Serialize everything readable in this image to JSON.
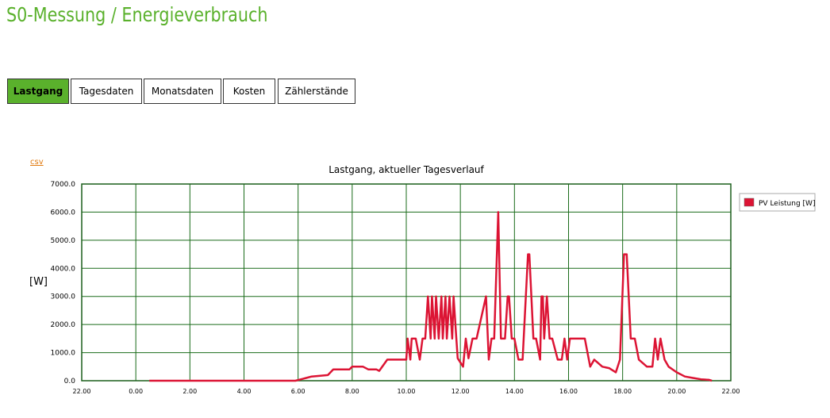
{
  "page": {
    "title": "S0-Messung / Energieverbrauch",
    "accent_color": "#5ab12c",
    "link_color": "#e07a10"
  },
  "tabs": [
    {
      "label": "Lastgang",
      "active": true
    },
    {
      "label": "Tagesdaten",
      "active": false
    },
    {
      "label": "Monatsdaten",
      "active": false
    },
    {
      "label": "Kosten",
      "active": false
    },
    {
      "label": "Zählerstände",
      "active": false
    }
  ],
  "csv_label": "csv",
  "chart_data": {
    "type": "line",
    "title": "Lastgang, aktueller Tagesverlauf",
    "ylabel": "[W]",
    "xlabel": "",
    "ylim": [
      0,
      7000
    ],
    "xlim": [
      -2,
      22
    ],
    "yticks": [
      "0.0",
      "1000.0",
      "2000.0",
      "3000.0",
      "4000.0",
      "5000.0",
      "6000.0",
      "7000.0"
    ],
    "xticks": [
      "22.00",
      "0.00",
      "2.00",
      "4.00",
      "6.00",
      "8.00",
      "10.00",
      "12.00",
      "14.00",
      "16.00",
      "18.00",
      "20.00",
      "22.00"
    ],
    "grid": true,
    "grid_color": "#1a6b1a",
    "legend_position": "right",
    "series": [
      {
        "name": "PV Leistung [W]",
        "color": "#dc1434",
        "x": [
          0.5,
          2,
          4,
          5.9,
          6.3,
          6.5,
          7.1,
          7.3,
          7.9,
          8.0,
          8.4,
          8.6,
          8.9,
          9.0,
          9.3,
          10.0,
          10.05,
          10.15,
          10.2,
          10.35,
          10.5,
          10.6,
          10.7,
          10.8,
          10.9,
          10.95,
          11.05,
          11.1,
          11.2,
          11.3,
          11.35,
          11.45,
          11.5,
          11.6,
          11.7,
          11.75,
          11.85,
          11.9,
          12.1,
          12.2,
          12.3,
          12.45,
          12.5,
          12.6,
          12.95,
          13.05,
          13.15,
          13.25,
          13.4,
          13.5,
          13.65,
          13.75,
          13.8,
          13.9,
          14.0,
          14.15,
          14.3,
          14.5,
          14.55,
          14.7,
          14.8,
          14.95,
          15.0,
          15.05,
          15.1,
          15.2,
          15.3,
          15.4,
          15.6,
          15.75,
          15.85,
          15.95,
          16.05,
          16.15,
          16.6,
          16.7,
          16.8,
          16.95,
          17.25,
          17.5,
          17.75,
          17.9,
          18.05,
          18.15,
          18.3,
          18.45,
          18.6,
          18.9,
          19.1,
          19.2,
          19.3,
          19.4,
          19.55,
          19.7,
          20.0,
          20.3,
          20.6,
          20.9,
          21.2,
          21.3
        ],
        "values": [
          0,
          0,
          0,
          0,
          100,
          150,
          200,
          400,
          400,
          500,
          500,
          400,
          400,
          350,
          750,
          750,
          1500,
          750,
          1500,
          1500,
          750,
          1500,
          1500,
          3000,
          1500,
          3000,
          1500,
          3000,
          1500,
          3000,
          1500,
          3000,
          1500,
          3000,
          1500,
          3000,
          1500,
          800,
          500,
          1500,
          800,
          1500,
          1500,
          1500,
          3000,
          750,
          1500,
          1500,
          6000,
          1500,
          1500,
          3000,
          3000,
          1500,
          1500,
          750,
          750,
          4500,
          4500,
          1500,
          1500,
          750,
          3000,
          3000,
          1500,
          3000,
          1500,
          1500,
          750,
          750,
          1500,
          750,
          1500,
          1500,
          1500,
          1000,
          500,
          750,
          500,
          450,
          300,
          750,
          4500,
          4500,
          1500,
          1500,
          750,
          500,
          500,
          1500,
          750,
          1500,
          750,
          500,
          300,
          150,
          100,
          50,
          30,
          0
        ]
      }
    ]
  }
}
